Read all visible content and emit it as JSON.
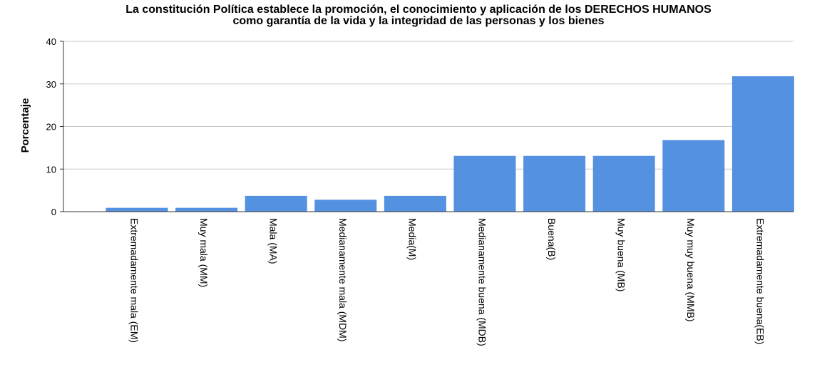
{
  "chart_data": {
    "type": "bar",
    "title_lines": [
      "La constitución Política establece la promoción, el conocimiento y aplicación de los DERECHOS HUMANOS",
      "como garantía de la vida y la integridad de las personas y los bienes"
    ],
    "ylabel": "Porcentaje",
    "xlabel": "",
    "ylim": [
      0,
      40
    ],
    "yticks": [
      0,
      10,
      20,
      30,
      40
    ],
    "grid": true,
    "bar_color": "#5591e1",
    "categories": [
      "Extremadamente mala (EM)",
      "Muy mala (MM)",
      "Mala (MA)",
      "Medianamente mala (MDM)",
      "Media(M)",
      "Medianamente buena (MDB)",
      "Buena(B)",
      "Muy buena (MB)",
      "Muy muy buena (MMB)",
      "Extremadamente buena(EB)"
    ],
    "values": [
      0.9,
      0.9,
      3.7,
      2.8,
      3.7,
      13.1,
      13.1,
      13.1,
      16.8,
      31.8
    ]
  }
}
